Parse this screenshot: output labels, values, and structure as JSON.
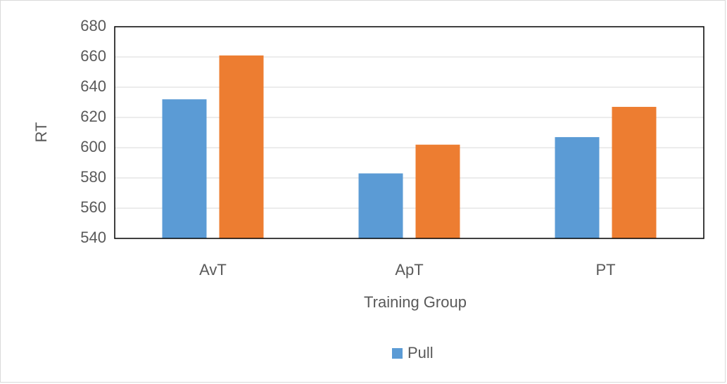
{
  "chart_data": {
    "type": "bar",
    "categories": [
      "AvT",
      "ApT",
      "PT"
    ],
    "series": [
      {
        "name": "Pull",
        "color": "#5b9bd5",
        "values": [
          632,
          583,
          607
        ]
      },
      {
        "color": "#ed7d31",
        "values": [
          661,
          602,
          627
        ]
      }
    ],
    "ylim": [
      540,
      680
    ],
    "yticks": [
      540,
      560,
      580,
      600,
      620,
      640,
      660,
      680
    ],
    "xlabel": "Training Group",
    "ylabel": "RT",
    "grid": true,
    "legend": "bottom"
  }
}
